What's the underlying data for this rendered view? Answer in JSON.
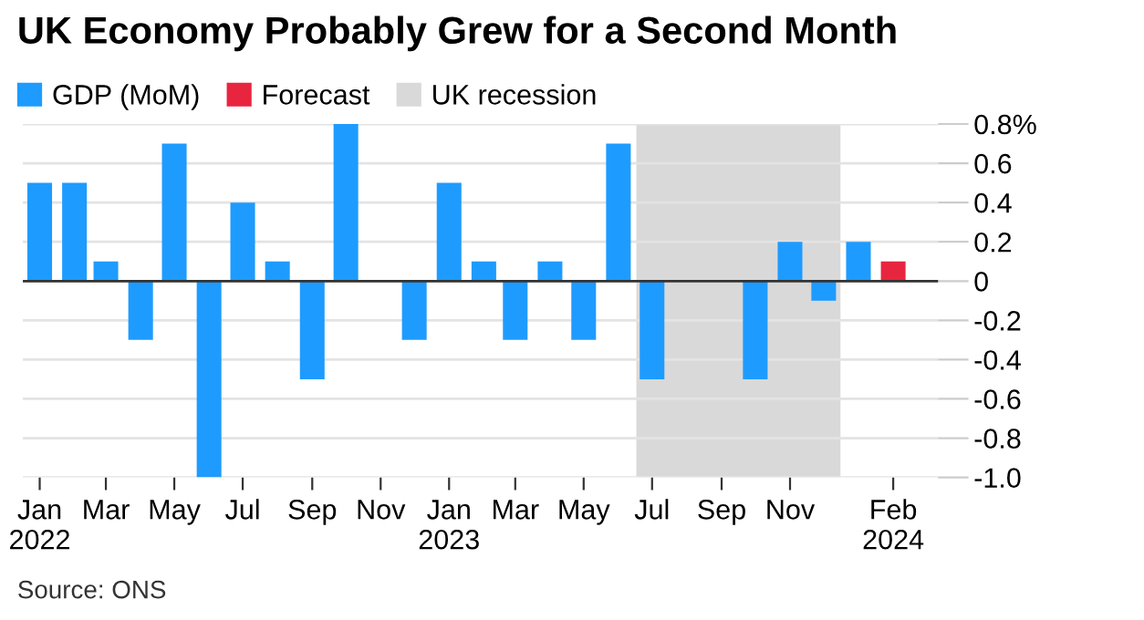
{
  "chart_data": {
    "type": "bar",
    "title": "UK Economy Probably Grew for a Second Month",
    "x": [
      "2022-01",
      "2022-02",
      "2022-03",
      "2022-04",
      "2022-05",
      "2022-06",
      "2022-07",
      "2022-08",
      "2022-09",
      "2022-10",
      "2022-11",
      "2022-12",
      "2023-01",
      "2023-02",
      "2023-03",
      "2023-04",
      "2023-05",
      "2023-06",
      "2023-07",
      "2023-08",
      "2023-09",
      "2023-10",
      "2023-11",
      "2023-12",
      "2024-01",
      "2024-02"
    ],
    "series": [
      {
        "name": "GDP (MoM)",
        "color": "#1e9bff",
        "values": [
          0.5,
          0.5,
          0.1,
          -0.3,
          0.7,
          -1.0,
          0.4,
          0.1,
          -0.5,
          0.8,
          0,
          -0.3,
          0.5,
          0.1,
          -0.3,
          0.1,
          -0.3,
          0.7,
          -0.5,
          0,
          0,
          -0.5,
          0.2,
          -0.1,
          0.2,
          null
        ]
      },
      {
        "name": "Forecast",
        "color": "#e8253f",
        "values": [
          null,
          null,
          null,
          null,
          null,
          null,
          null,
          null,
          null,
          null,
          null,
          null,
          null,
          null,
          null,
          null,
          null,
          null,
          null,
          null,
          null,
          null,
          null,
          null,
          null,
          0.1
        ]
      }
    ],
    "bands": [
      {
        "axis": "x",
        "from": "2023-06-17",
        "to": "2023-12-16",
        "label": "UK recession",
        "color": "#d9d9d9"
      }
    ],
    "ref_lines": [
      {
        "axis": "y",
        "value": 0,
        "color": "#333333"
      }
    ],
    "xlim": [
      "2021-12-17",
      "2024-03-12"
    ],
    "xticks": [
      {
        "value": "2022-01",
        "label": "Jan\n2022"
      },
      {
        "value": "2022-03",
        "label": "Mar"
      },
      {
        "value": "2022-05",
        "label": "May"
      },
      {
        "value": "2022-07",
        "label": "Jul"
      },
      {
        "value": "2022-09",
        "label": "Sep"
      },
      {
        "value": "2022-11",
        "label": "Nov"
      },
      {
        "value": "2023-01",
        "label": "Jan\n2023"
      },
      {
        "value": "2023-03",
        "label": "Mar"
      },
      {
        "value": "2023-05",
        "label": "May"
      },
      {
        "value": "2023-07",
        "label": "Jul"
      },
      {
        "value": "2023-09",
        "label": "Sep"
      },
      {
        "value": "2023-11",
        "label": "Nov"
      },
      {
        "value": "2024-02",
        "label": "Feb\n2024"
      }
    ],
    "ylim": [
      -1.0,
      0.8
    ],
    "yticks": [
      {
        "value": 0.8,
        "label": "0.8%"
      },
      {
        "value": 0.6,
        "label": "0.6"
      },
      {
        "value": 0.4,
        "label": "0.4"
      },
      {
        "value": 0.2,
        "label": "0.2"
      },
      {
        "value": 0,
        "label": "0"
      },
      {
        "value": -0.2,
        "label": "-0.2"
      },
      {
        "value": -0.4,
        "label": "-0.4"
      },
      {
        "value": -0.6,
        "label": "-0.6"
      },
      {
        "value": -0.8,
        "label": "-0.8"
      },
      {
        "value": -1.0,
        "label": "-1.0"
      }
    ],
    "grid": "y",
    "legend": "top left",
    "annotations": [
      "Source: ONS"
    ]
  }
}
